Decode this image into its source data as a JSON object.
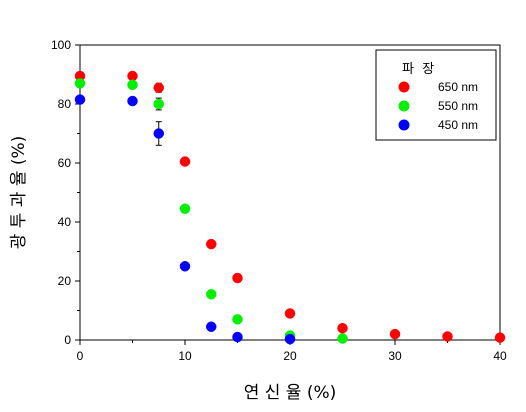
{
  "chart_data": {
    "type": "scatter",
    "title": "",
    "xlabel": "연 신 율 (%)",
    "ylabel": "광 투 과 율 (%)",
    "xlim": [
      0,
      40
    ],
    "ylim": [
      0,
      100
    ],
    "x_ticks": [
      0,
      10,
      20,
      30,
      40
    ],
    "y_ticks": [
      0,
      20,
      40,
      60,
      80,
      100
    ],
    "grid": false,
    "legend": {
      "title": "파  장",
      "placement": "top-right"
    },
    "series": [
      {
        "name": "650 nm",
        "color": "#ff0000",
        "points": [
          {
            "x": 0,
            "y": 89.5
          },
          {
            "x": 5,
            "y": 89.5
          },
          {
            "x": 7.5,
            "y": 85.5,
            "err": 1.5
          },
          {
            "x": 10,
            "y": 60.5
          },
          {
            "x": 12.5,
            "y": 32.5
          },
          {
            "x": 15,
            "y": 21
          },
          {
            "x": 20,
            "y": 9
          },
          {
            "x": 25,
            "y": 4
          },
          {
            "x": 30,
            "y": 2
          },
          {
            "x": 35,
            "y": 1.2
          },
          {
            "x": 40,
            "y": 0.8
          }
        ]
      },
      {
        "name": "550 nm",
        "color": "#00ee00",
        "points": [
          {
            "x": 0,
            "y": 87
          },
          {
            "x": 5,
            "y": 86.5
          },
          {
            "x": 7.5,
            "y": 80,
            "err": 2
          },
          {
            "x": 10,
            "y": 44.5
          },
          {
            "x": 12.5,
            "y": 15.5
          },
          {
            "x": 15,
            "y": 7
          },
          {
            "x": 20,
            "y": 1.5
          },
          {
            "x": 25,
            "y": 0.5
          }
        ]
      },
      {
        "name": "450 nm",
        "color": "#0000ff",
        "points": [
          {
            "x": 0,
            "y": 81.5
          },
          {
            "x": 5,
            "y": 81
          },
          {
            "x": 7.5,
            "y": 70,
            "err": 4
          },
          {
            "x": 10,
            "y": 25
          },
          {
            "x": 12.5,
            "y": 4.5
          },
          {
            "x": 15,
            "y": 1
          },
          {
            "x": 20,
            "y": 0.3
          }
        ]
      }
    ]
  }
}
